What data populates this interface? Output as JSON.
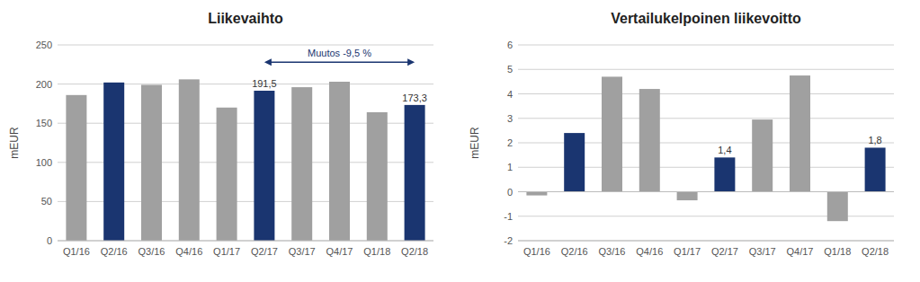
{
  "chart_data": [
    {
      "type": "bar",
      "title": "Liikevaihto",
      "ylabel": "mEUR",
      "categories": [
        "Q1/16",
        "Q2/16",
        "Q3/16",
        "Q4/16",
        "Q1/17",
        "Q2/17",
        "Q3/17",
        "Q4/17",
        "Q1/18",
        "Q2/18"
      ],
      "values": [
        186,
        202,
        199,
        206,
        170,
        191.5,
        196,
        203,
        164,
        173.3
      ],
      "value_labels": [
        null,
        null,
        null,
        null,
        null,
        "191,5",
        null,
        null,
        null,
        "173,3"
      ],
      "colors": [
        "#a0a0a0",
        "#1a3570",
        "#a0a0a0",
        "#a0a0a0",
        "#a0a0a0",
        "#1a3570",
        "#a0a0a0",
        "#a0a0a0",
        "#a0a0a0",
        "#1a3570"
      ],
      "ylim": [
        0,
        250
      ],
      "yticks": [
        0,
        50,
        100,
        150,
        200,
        250
      ],
      "grid": true,
      "annotations": [
        {
          "text": "Muutos -9,5 %",
          "x": "Q4/17",
          "y": 233,
          "color": "#1a3570",
          "arrow": {
            "from": "Q2/17",
            "to": "Q2/18",
            "y": 228
          }
        }
      ]
    },
    {
      "type": "bar",
      "title": "Vertailukelpoinen liikevoitto",
      "ylabel": "mEUR",
      "categories": [
        "Q1/16",
        "Q2/16",
        "Q3/16",
        "Q4/16",
        "Q1/17",
        "Q2/17",
        "Q3/17",
        "Q4/17",
        "Q1/18",
        "Q2/18"
      ],
      "values": [
        -0.15,
        2.4,
        4.7,
        4.2,
        -0.35,
        1.4,
        2.95,
        4.75,
        -1.2,
        1.8
      ],
      "value_labels": [
        null,
        null,
        null,
        null,
        null,
        "1,4",
        null,
        null,
        null,
        "1,8"
      ],
      "colors": [
        "#a0a0a0",
        "#1a3570",
        "#a0a0a0",
        "#a0a0a0",
        "#a0a0a0",
        "#1a3570",
        "#a0a0a0",
        "#a0a0a0",
        "#a0a0a0",
        "#1a3570"
      ],
      "ylim": [
        -2,
        6
      ],
      "yticks": [
        -2,
        -1,
        0,
        1,
        2,
        3,
        4,
        5,
        6
      ],
      "grid": true
    }
  ]
}
